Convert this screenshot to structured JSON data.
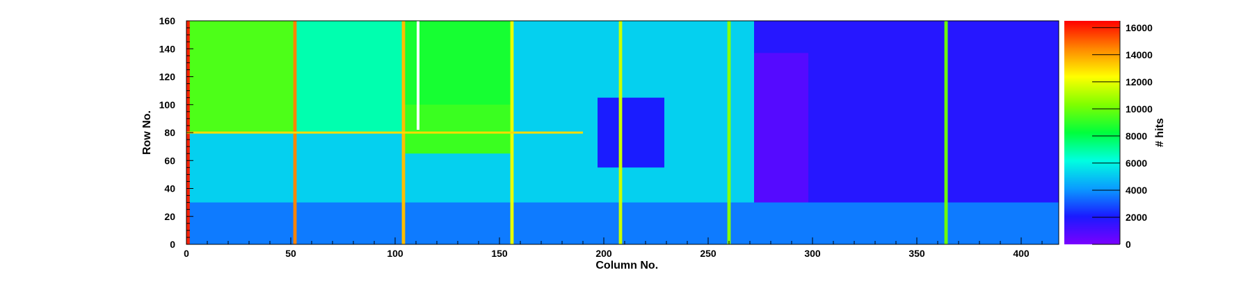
{
  "chart_data": {
    "type": "heatmap",
    "title": "",
    "xlabel": "Column No.",
    "ylabel": "Row No.",
    "colorbar_label": "# hits",
    "xlim": [
      0,
      418
    ],
    "ylim": [
      0,
      160
    ],
    "zlim": [
      0,
      16500
    ],
    "x_ticks": [
      0,
      50,
      100,
      150,
      200,
      250,
      300,
      350,
      400
    ],
    "y_ticks": [
      0,
      20,
      40,
      60,
      80,
      100,
      120,
      140,
      160
    ],
    "z_ticks": [
      0,
      2000,
      4000,
      6000,
      8000,
      10000,
      12000,
      14000,
      16000
    ],
    "palette": [
      "#7a00ff",
      "#1a1aff",
      "#0a9cff",
      "#00ffe0",
      "#00ff3c",
      "#7fff00",
      "#ffff00",
      "#ff8800",
      "#ff0000"
    ],
    "grid": false,
    "regions": [
      {
        "name": "background",
        "x": [
          0,
          418
        ],
        "y": [
          0,
          160
        ],
        "value": 5200
      },
      {
        "name": "left-block",
        "x": [
          0,
          52
        ],
        "y": [
          80,
          160
        ],
        "value": 9500
      },
      {
        "name": "center-left-block",
        "x": [
          52,
          104
        ],
        "y": [
          80,
          160
        ],
        "value": 6800
      },
      {
        "name": "center-block",
        "x": [
          104,
          156
        ],
        "y": [
          70,
          160
        ],
        "value": 8600
      },
      {
        "name": "logo-area",
        "x": [
          104,
          156
        ],
        "y": [
          65,
          100
        ],
        "value": 9200
      },
      {
        "name": "right-region",
        "x": [
          272,
          418
        ],
        "y": [
          0,
          160
        ],
        "value": 1800
      },
      {
        "name": "periphery-block",
        "x": [
          272,
          298
        ],
        "y": [
          15,
          137
        ],
        "value": 800
      },
      {
        "name": "bottom-band",
        "x": [
          0,
          418
        ],
        "y": [
          0,
          30
        ],
        "value": 3600
      },
      {
        "name": "core-block",
        "x": [
          197,
          229
        ],
        "y": [
          55,
          105
        ],
        "value": 2100
      }
    ],
    "hot_columns": [
      {
        "x": 0,
        "value": 16000
      },
      {
        "x": 52,
        "value": 14500
      },
      {
        "x": 104,
        "value": 13500
      },
      {
        "x": 156,
        "value": 12000
      },
      {
        "x": 208,
        "value": 11500
      },
      {
        "x": 260,
        "value": 10500
      },
      {
        "x": 364,
        "value": 10000
      }
    ],
    "hot_rows": [
      {
        "y": 80,
        "x": [
          0,
          190
        ],
        "value": 13000
      }
    ],
    "dead_columns": [
      {
        "x": 111,
        "y": [
          82,
          160
        ]
      }
    ]
  }
}
